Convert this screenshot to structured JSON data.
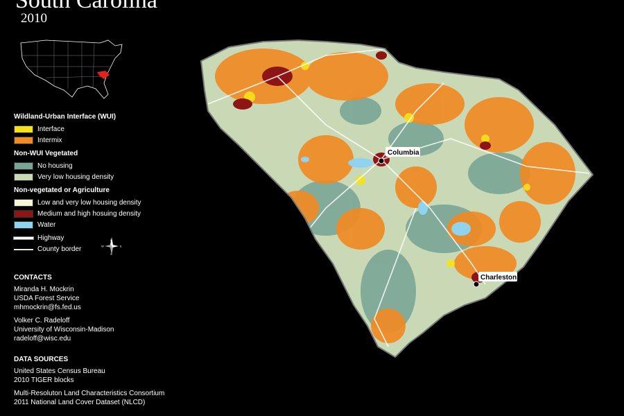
{
  "title": "South Carolina",
  "year": "2010",
  "legend": {
    "wui_heading": "Wildland-Urban Interface (WUI)",
    "wui_items": [
      {
        "label": "Interface",
        "color": "#f5e11a"
      },
      {
        "label": "Intermix",
        "color": "#f08a24"
      }
    ],
    "nonwui_heading": "Non-WUI Vegetated",
    "nonwui_items": [
      {
        "label": "No housing",
        "color": "#7aa596"
      },
      {
        "label": "Very low housing density",
        "color": "#c9d9b6"
      }
    ],
    "nonveg_heading": "Non-vegetated or Agriculture",
    "nonveg_items": [
      {
        "label": "Low and very low housing density",
        "color": "#f6f5d8"
      },
      {
        "label": "Medium and high hosuing density",
        "color": "#8e1515"
      },
      {
        "label": "Water",
        "color": "#8fd3ef"
      }
    ],
    "highway_label": "Highway",
    "county_label": "County border"
  },
  "contacts": {
    "heading": "CONTACTS",
    "people": [
      {
        "name": "Miranda H. Mockrin",
        "org": "USDA Forest Service",
        "email": "mhmockrin@fs.fed.us"
      },
      {
        "name": "Volker C. Radeloff",
        "org": "University of Wisconsin-Madison",
        "email": "radeloff@wisc.edu"
      }
    ]
  },
  "sources": {
    "heading": "DATA SOURCES",
    "entries": [
      {
        "line1": "United States Census Bureau",
        "line2": "2010 TIGER blocks"
      },
      {
        "line1": "Multi-Resoluton Land Characteristics Consortium",
        "line2": "2011 National Land Cover Dataset (NLCD)"
      }
    ]
  },
  "cities": [
    {
      "name": "Columbia"
    },
    {
      "name": "Charleston"
    }
  ],
  "compass": {
    "n": "N",
    "s": "S",
    "e": "E",
    "w": "W"
  }
}
